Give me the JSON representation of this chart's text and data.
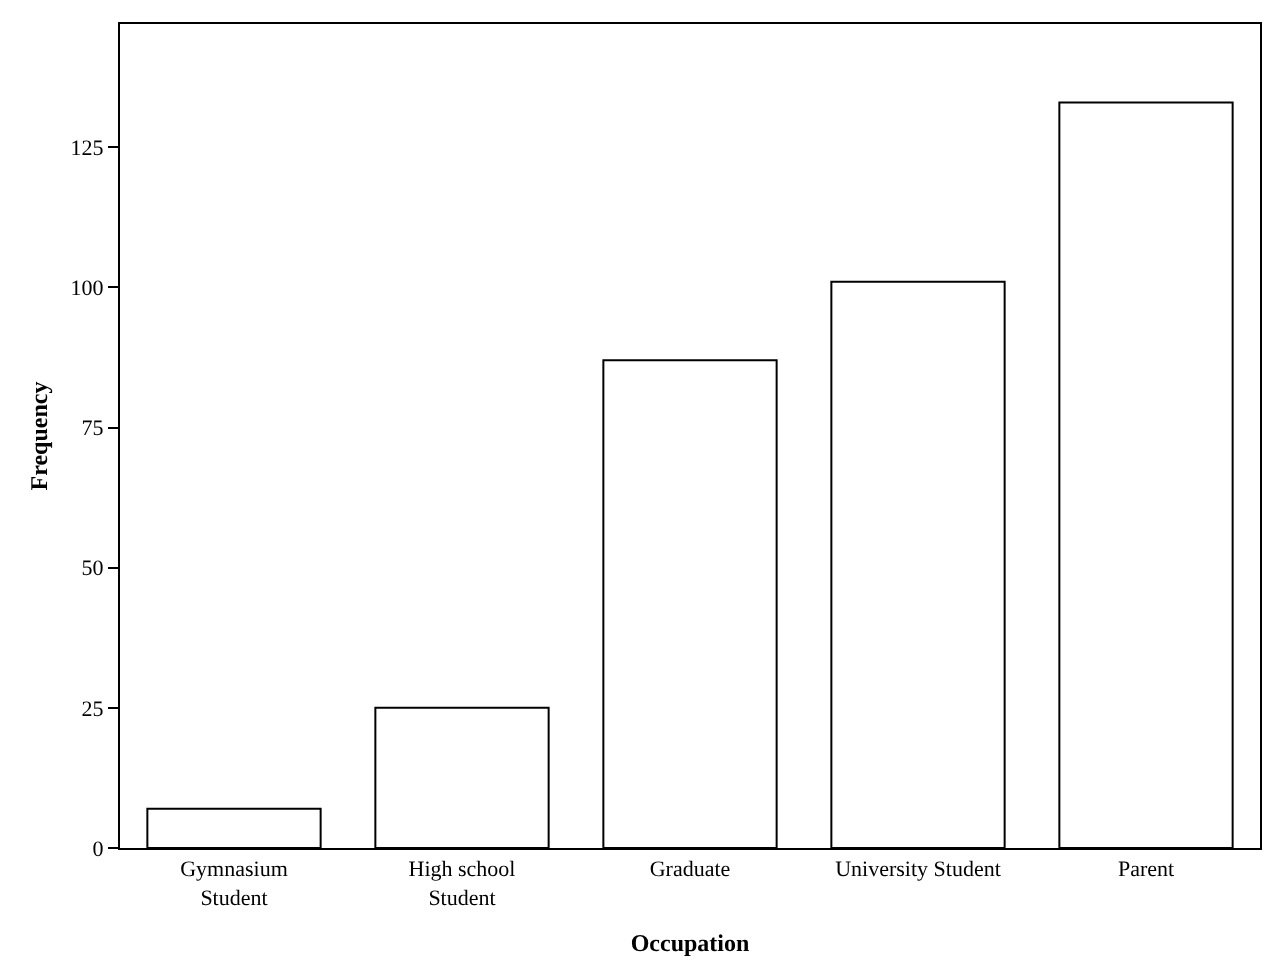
{
  "chart_data": {
    "type": "bar",
    "xlabel": "Occupation",
    "ylabel": "Frequency",
    "categories": [
      "Gymnasium\nStudent",
      "High school\nStudent",
      "Graduate",
      "University Student",
      "Parent"
    ],
    "values": [
      7,
      25,
      87,
      101,
      133
    ],
    "color": "#ffffff",
    "ylim": [
      0,
      147
    ],
    "yticks": [
      0,
      25,
      50,
      75,
      100,
      125
    ]
  }
}
